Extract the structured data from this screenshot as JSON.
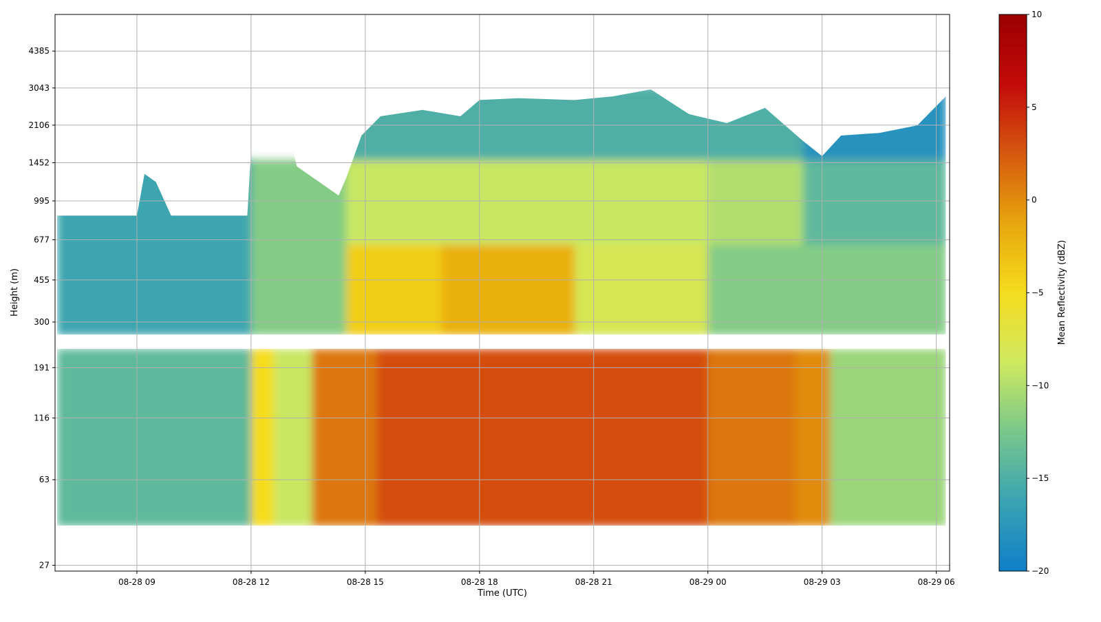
{
  "chart_data": {
    "type": "heatmap",
    "title": "",
    "xlabel": "Time (UTC)",
    "ylabel": "Height (m)",
    "x_ticks": [
      "08-28 09",
      "08-28 12",
      "08-28 15",
      "08-28 18",
      "08-28 21",
      "08-29 00",
      "08-29 03",
      "08-29 06"
    ],
    "x_tick_hours": [
      3,
      6,
      9,
      12,
      15,
      18,
      21,
      24
    ],
    "xlim_hours": [
      0.85,
      24.35
    ],
    "data_x_range_hours": [
      0.9,
      24.25
    ],
    "y_scale": "log",
    "y_ticks": [
      "27",
      "63",
      "116",
      "191",
      "300",
      "455",
      "677",
      "995",
      "1452",
      "2106",
      "3043",
      "4385"
    ],
    "y_tick_values": [
      27,
      63,
      116,
      191,
      300,
      455,
      677,
      995,
      1452,
      2106,
      3043,
      4385
    ],
    "ylim": [
      25.5,
      6300
    ],
    "gap_between_m": [
      230,
      265
    ],
    "lowest_gate_m": 40,
    "grid": true,
    "colorbar": {
      "label": "Mean Reflectivity (dBZ)",
      "min": -20,
      "max": 10,
      "ticks": [
        "10",
        "5",
        "0",
        "−5",
        "−10",
        "−15",
        "−20"
      ],
      "tick_values": [
        10,
        5,
        0,
        -5,
        -10,
        -15,
        -20
      ],
      "colors": [
        "#0f7fc8",
        "#3aa3b3",
        "#78c78c",
        "#cfe960",
        "#f5dc1e",
        "#e7a60d",
        "#d6580f",
        "#c40a0a",
        "#9a0000"
      ]
    },
    "cloud_top_m": [
      [
        0.9,
        860
      ],
      [
        3.0,
        860
      ],
      [
        3.2,
        1300
      ],
      [
        3.5,
        1200
      ],
      [
        3.9,
        860
      ],
      [
        5.9,
        860
      ],
      [
        6.0,
        1650
      ],
      [
        6.6,
        1900
      ],
      [
        7.0,
        1950
      ],
      [
        7.2,
        1400
      ],
      [
        8.3,
        1050
      ],
      [
        8.5,
        1250
      ],
      [
        8.9,
        1900
      ],
      [
        9.4,
        2300
      ],
      [
        10.5,
        2450
      ],
      [
        11.5,
        2300
      ],
      [
        12.0,
        2700
      ],
      [
        13.0,
        2750
      ],
      [
        14.5,
        2700
      ],
      [
        15.5,
        2800
      ],
      [
        16.5,
        3000
      ],
      [
        17.5,
        2350
      ],
      [
        18.5,
        2150
      ],
      [
        19.5,
        2500
      ],
      [
        20.5,
        1800
      ],
      [
        21.0,
        1550
      ],
      [
        21.5,
        1900
      ],
      [
        22.5,
        1950
      ],
      [
        23.5,
        2100
      ],
      [
        24.25,
        2800
      ]
    ],
    "cells": [
      {
        "t0": 0.9,
        "t1": 6.0,
        "h0": 40,
        "h1": 230,
        "dbz": -14
      },
      {
        "t0": 6.0,
        "t1": 6.6,
        "h0": 40,
        "h1": 230,
        "dbz": -5
      },
      {
        "t0": 6.6,
        "t1": 7.6,
        "h0": 40,
        "h1": 230,
        "dbz": -9
      },
      {
        "t0": 7.6,
        "t1": 9.3,
        "h0": 40,
        "h1": 230,
        "dbz": 1
      },
      {
        "t0": 9.3,
        "t1": 18.0,
        "h0": 40,
        "h1": 230,
        "dbz": 3
      },
      {
        "t0": 18.0,
        "t1": 20.3,
        "h0": 40,
        "h1": 230,
        "dbz": 1
      },
      {
        "t0": 20.3,
        "t1": 21.2,
        "h0": 40,
        "h1": 230,
        "dbz": 0
      },
      {
        "t0": 21.2,
        "t1": 24.25,
        "h0": 40,
        "h1": 230,
        "dbz": -11
      },
      {
        "t0": 0.9,
        "t1": 6.0,
        "h0": 265,
        "h1": 1500,
        "dbz": -16
      },
      {
        "t0": 6.0,
        "t1": 8.5,
        "h0": 265,
        "h1": 1500,
        "dbz": -12
      },
      {
        "t0": 8.5,
        "t1": 11.0,
        "h0": 265,
        "h1": 650,
        "dbz": -4
      },
      {
        "t0": 11.0,
        "t1": 14.5,
        "h0": 265,
        "h1": 650,
        "dbz": -2
      },
      {
        "t0": 14.5,
        "t1": 18.0,
        "h0": 265,
        "h1": 650,
        "dbz": -8
      },
      {
        "t0": 18.0,
        "t1": 24.25,
        "h0": 265,
        "h1": 650,
        "dbz": -12
      },
      {
        "t0": 8.5,
        "t1": 18.0,
        "h0": 650,
        "h1": 1500,
        "dbz": -9
      },
      {
        "t0": 18.0,
        "t1": 20.5,
        "h0": 650,
        "h1": 1500,
        "dbz": -10
      },
      {
        "t0": 20.5,
        "t1": 24.25,
        "h0": 650,
        "h1": 1500,
        "dbz": -14
      },
      {
        "t0": 8.5,
        "t1": 20.5,
        "h0": 1500,
        "h1": 3100,
        "dbz": -15
      },
      {
        "t0": 20.5,
        "t1": 24.25,
        "h0": 1500,
        "h1": 3100,
        "dbz": -18
      }
    ]
  }
}
